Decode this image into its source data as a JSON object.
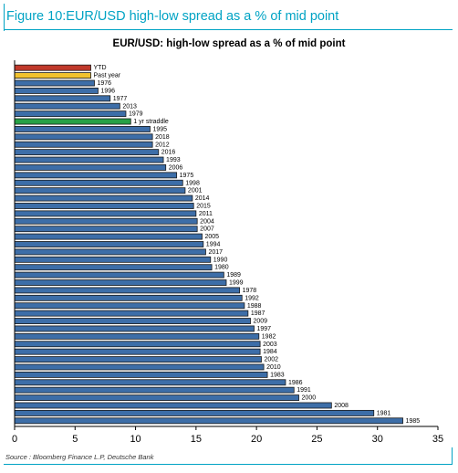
{
  "figure_label": "Figure 10:EUR/USD high-low spread as a % of mid point",
  "source": "Source : Bloomberg Finance L.P, Deutsche Bank",
  "colors": {
    "accent": "#00a3c4",
    "bar_default": "#3d6ea8",
    "bar_ytd": "#c0392b",
    "bar_past_year": "#f2c22e",
    "bar_straddle": "#27a146"
  },
  "chart_data": {
    "type": "bar",
    "orientation": "horizontal",
    "title": "EUR/USD: high-low spread as a % of mid point",
    "xlabel": "",
    "ylabel": "",
    "xlim": [
      0,
      35
    ],
    "xticks": [
      0,
      5,
      10,
      15,
      20,
      25,
      30,
      35
    ],
    "grid": false,
    "categories": [
      "YTD",
      "Past year",
      "1976",
      "1996",
      "1977",
      "2013",
      "1979",
      "1 yr straddle",
      "1995",
      "2018",
      "2012",
      "2016",
      "1993",
      "2006",
      "1975",
      "1998",
      "2001",
      "2014",
      "2015",
      "2011",
      "2004",
      "2007",
      "2005",
      "1994",
      "2017",
      "1990",
      "1980",
      "1989",
      "1999",
      "1978",
      "1992",
      "1988",
      "1987",
      "2009",
      "1997",
      "1982",
      "2003",
      "1984",
      "2002",
      "2010",
      "1983",
      "1986",
      "1991",
      "2000",
      "2008",
      "1981",
      "1985"
    ],
    "values": [
      6.3,
      6.3,
      6.6,
      6.9,
      7.9,
      8.7,
      9.2,
      9.6,
      11.2,
      11.4,
      11.4,
      11.9,
      12.3,
      12.5,
      13.4,
      13.9,
      14.1,
      14.7,
      14.8,
      15.0,
      15.1,
      15.1,
      15.5,
      15.6,
      15.8,
      16.2,
      16.3,
      17.3,
      17.5,
      18.6,
      18.8,
      19.0,
      19.3,
      19.5,
      19.8,
      20.2,
      20.3,
      20.3,
      20.4,
      20.6,
      20.9,
      22.4,
      23.1,
      23.5,
      26.2,
      29.7,
      32.1
    ],
    "highlight": {
      "YTD": "bar_ytd",
      "Past year": "bar_past_year",
      "1 yr straddle": "bar_straddle"
    }
  }
}
